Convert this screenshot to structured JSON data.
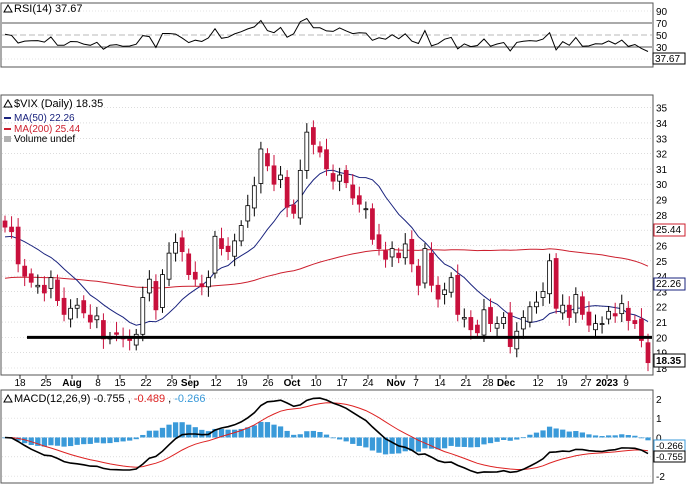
{
  "colors": {
    "down": "#c8103c",
    "up": "#000000",
    "ma50": "#1a237e",
    "ma200": "#cc1f2e",
    "macd": "#000000",
    "signal": "#dd2222",
    "hist": "#3a9ad9",
    "grid": "#c8c8c8",
    "support": "#000000"
  },
  "rsi_panel": {
    "label": "RSI(14) 37.67",
    "value_label": "37.67",
    "ticks": [
      "90",
      "70",
      "50",
      "30",
      "10"
    ]
  },
  "price_panel": {
    "title": "$VIX (Daily) 18.35",
    "ma50_label": "MA(50) 22.26",
    "ma200_label": "MA(200) 25.44",
    "volume_label": "Volume undef",
    "last_label": "18.35",
    "ma50_value_label": "22.26",
    "ma200_value_label": "25.44",
    "ticks": [
      "35",
      "34",
      "33",
      "32",
      "31",
      "30",
      "29",
      "28",
      "27",
      "26",
      "25",
      "24",
      "23",
      "22",
      "21",
      "20",
      "19",
      "18"
    ]
  },
  "x_axis": {
    "labels": [
      "18",
      "25",
      "Aug",
      "8",
      "15",
      "22",
      "29",
      "Sep",
      "12",
      "19",
      "26",
      "Oct",
      "10",
      "17",
      "24",
      "Nov",
      "7",
      "14",
      "21",
      "28",
      "Dec",
      "12",
      "19",
      "27",
      "2023",
      "9"
    ]
  },
  "macd_panel": {
    "label_prefix": "MACD(12,26,9)",
    "macd_value": "-0.755",
    "signal_value": "-0.489",
    "hist_value": "-0.266",
    "ticks": [
      "2",
      "1",
      "0",
      "-1",
      "-2"
    ],
    "right_labels": [
      "-0.266",
      "-0.755"
    ]
  },
  "chart_data": {
    "type": "candlestick",
    "title": "$VIX (Daily) 18.35",
    "symbol": "$VIX",
    "period": "Daily",
    "last": 18.35,
    "ylim": [
      18,
      35.5
    ],
    "support_line": 20,
    "x_tick_labels": [
      "18",
      "25",
      "Aug",
      "8",
      "15",
      "22",
      "29",
      "Sep",
      "12",
      "19",
      "26",
      "Oct",
      "10",
      "17",
      "24",
      "Nov",
      "7",
      "14",
      "21",
      "28",
      "Dec",
      "12",
      "19",
      "27",
      "2023",
      "9"
    ],
    "closes": [
      27.2,
      26.9,
      24.8,
      24.0,
      23.6,
      23.4,
      22.9,
      23.9,
      22.4,
      21.5,
      21.9,
      22.1,
      21.6,
      21.0,
      21.4,
      19.9,
      20.0,
      20.2,
      19.9,
      19.8,
      20.2,
      22.6,
      23.8,
      21.8,
      24.1,
      25.5,
      26.2,
      25.6,
      24.1,
      23.8,
      23.3,
      23.9,
      26.6,
      25.8,
      25.6,
      26.3,
      27.3,
      28.6,
      29.9,
      32.3,
      31.2,
      30.0,
      30.6,
      28.5,
      28.1,
      30.9,
      33.4,
      32.6,
      32.1,
      31.0,
      30.2,
      30.6,
      30.1,
      29.1,
      28.7,
      28.4,
      26.4,
      25.8,
      25.1,
      25.8,
      25.2,
      26.1,
      24.8,
      23.4,
      25.8,
      23.4,
      22.5,
      23.1,
      23.9,
      21.5,
      21.3,
      20.5,
      20.3,
      21.8,
      20.9,
      20.9,
      21.3,
      19.4,
      20.4,
      21.3,
      22.0,
      22.3,
      23.0,
      25.0,
      21.9,
      22.1,
      21.3,
      22.8,
      21.5,
      20.8,
      20.9,
      20.9,
      21.7,
      21.4,
      22.2,
      21.1,
      20.9,
      19.8,
      18.35
    ],
    "ma50": {
      "name": "MA(50)",
      "last": 22.26
    },
    "ma200": {
      "name": "MA(200)",
      "last": 25.44
    },
    "rsi": {
      "name": "RSI(14)",
      "last": 37.67,
      "ylim": [
        0,
        100
      ],
      "levels": [
        70,
        50,
        30
      ]
    },
    "macd": {
      "name": "MACD(12,26,9)",
      "macd": -0.755,
      "signal": -0.489,
      "histogram": -0.266,
      "ylim": [
        -2.2,
        2.3
      ]
    }
  }
}
